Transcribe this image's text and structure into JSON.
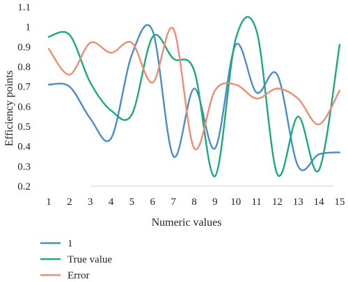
{
  "chart_data": {
    "type": "line",
    "title": "",
    "xlabel": "Numeric values",
    "ylabel": "Efficiency points",
    "x": [
      1,
      2,
      3,
      4,
      5,
      6,
      7,
      8,
      9,
      10,
      11,
      12,
      13,
      14,
      15
    ],
    "xticks": [
      "1",
      "2",
      "3",
      "4",
      "5",
      "6",
      "7",
      "8",
      "9",
      "10",
      "11",
      "12",
      "13",
      "14",
      "15"
    ],
    "yticks": [
      "0.2",
      "0.3",
      "0.4",
      "0.5",
      "0.6",
      "0.7",
      "0.8",
      "0.9",
      "1",
      "1.1"
    ],
    "ylim": [
      0.2,
      1.1
    ],
    "grid": false,
    "legend_position": "bottom-left",
    "series": [
      {
        "name": "1",
        "color": "#4a8bc9",
        "values": [
          0.71,
          0.7,
          0.54,
          0.44,
          0.86,
          0.98,
          0.35,
          0.69,
          0.39,
          0.91,
          0.67,
          0.76,
          0.3,
          0.36,
          0.37
        ]
      },
      {
        "name": "True value",
        "color": "#1aaa7a",
        "values": [
          0.95,
          0.96,
          0.72,
          0.58,
          0.56,
          0.95,
          0.84,
          0.78,
          0.25,
          0.94,
          0.98,
          0.26,
          0.55,
          0.28,
          0.91
        ]
      },
      {
        "name": "Error",
        "color": "#f08a75",
        "values": [
          0.89,
          0.76,
          0.92,
          0.87,
          0.92,
          0.72,
          0.99,
          0.39,
          0.68,
          0.71,
          0.64,
          0.69,
          0.64,
          0.51,
          0.68
        ]
      }
    ]
  }
}
